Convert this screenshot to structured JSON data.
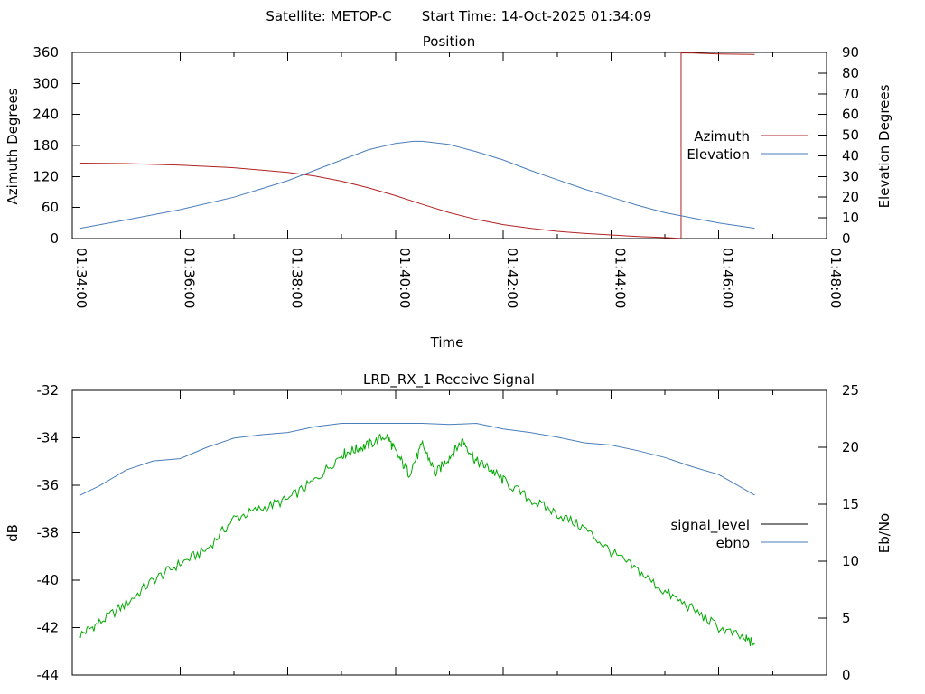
{
  "header": {
    "satellite": "Satellite: METOP-C",
    "start_time": "Start Time: 14-Oct-2025 01:34:09"
  },
  "chart_data": [
    {
      "type": "line",
      "title": "Position",
      "xlabel": "Time",
      "ylabel": "Azimuth Degrees",
      "y2label": "Elevation Degrees",
      "xlim": [
        "01:34:00",
        "01:48:00"
      ],
      "ylim": [
        0,
        360
      ],
      "y2lim": [
        0,
        90
      ],
      "x_ticks": [
        "01:34:00",
        "01:36:00",
        "01:38:00",
        "01:40:00",
        "01:42:00",
        "01:44:00",
        "01:46:00",
        "01:48:00"
      ],
      "y_ticks": [
        "0",
        "60",
        "120",
        "180",
        "240",
        "300",
        "360"
      ],
      "y2_ticks": [
        "0",
        "10",
        "20",
        "30",
        "40",
        "50",
        "60",
        "70",
        "80",
        "90"
      ],
      "legend_position": "right",
      "series": [
        {
          "name": "Azimuth",
          "axis": "y",
          "color": "#b22222",
          "x": [
            "01:34:09",
            "01:35:00",
            "01:36:00",
            "01:37:00",
            "01:38:00",
            "01:38:30",
            "01:39:00",
            "01:39:30",
            "01:40:00",
            "01:40:30",
            "01:41:00",
            "01:41:30",
            "01:42:00",
            "01:42:30",
            "01:43:00",
            "01:43:30",
            "01:44:00",
            "01:44:30",
            "01:45:00",
            "01:45:15",
            "01:45:18",
            "01:45:30",
            "01:46:00",
            "01:46:40"
          ],
          "values": [
            146,
            145,
            142,
            137,
            128,
            121,
            111,
            98,
            83,
            66,
            50,
            37,
            27,
            20,
            14,
            10,
            7,
            4,
            2,
            0.5,
            359,
            359,
            357,
            356
          ]
        },
        {
          "name": "Elevation",
          "axis": "y2",
          "color": "#4a7ebb",
          "x": [
            "01:34:09",
            "01:35:00",
            "01:36:00",
            "01:37:00",
            "01:37:30",
            "01:38:00",
            "01:38:30",
            "01:39:00",
            "01:39:30",
            "01:40:00",
            "01:40:20",
            "01:40:30",
            "01:41:00",
            "01:41:30",
            "01:42:00",
            "01:42:30",
            "01:43:00",
            "01:43:30",
            "01:44:00",
            "01:44:30",
            "01:45:00",
            "01:45:30",
            "01:46:00",
            "01:46:40"
          ],
          "values": [
            5,
            9,
            14,
            20,
            24,
            28,
            33,
            38,
            43,
            46,
            47,
            47,
            45.5,
            42,
            38,
            33,
            28.5,
            24,
            20,
            16,
            12.5,
            10,
            7.5,
            5
          ]
        }
      ]
    },
    {
      "type": "line",
      "title": "LRD_RX_1 Receive Signal",
      "xlabel": "",
      "ylabel": "dB",
      "y2label": "Eb/No",
      "xlim": [
        "01:34:00",
        "01:48:00"
      ],
      "ylim": [
        -44,
        -32
      ],
      "y2lim": [
        0,
        25
      ],
      "y_ticks": [
        "-44",
        "-42",
        "-40",
        "-38",
        "-36",
        "-34",
        "-32"
      ],
      "y2_ticks": [
        "0",
        "5",
        "10",
        "15",
        "20",
        "25"
      ],
      "legend_position": "right",
      "series": [
        {
          "name": "signal_level",
          "axis": "y",
          "color": "#00aa00",
          "x": [
            "01:34:09",
            "01:34:30",
            "01:35:00",
            "01:35:30",
            "01:36:00",
            "01:36:30",
            "01:37:00",
            "01:37:30",
            "01:38:00",
            "01:38:30",
            "01:39:00",
            "01:39:15",
            "01:39:30",
            "01:39:50",
            "01:40:00",
            "01:40:15",
            "01:40:30",
            "01:40:45",
            "01:41:00",
            "01:41:15",
            "01:41:30",
            "01:41:45",
            "01:42:00",
            "01:42:30",
            "01:43:00",
            "01:43:30",
            "01:44:00",
            "01:44:30",
            "01:45:00",
            "01:45:30",
            "01:46:00",
            "01:46:30",
            "01:46:40"
          ],
          "values": [
            -42.3,
            -41.8,
            -41.0,
            -40.0,
            -39.3,
            -38.7,
            -37.4,
            -37.0,
            -36.6,
            -35.8,
            -34.7,
            -34.5,
            -34.3,
            -33.9,
            -34.6,
            -35.5,
            -34.3,
            -35.5,
            -34.8,
            -34.1,
            -35.0,
            -35.3,
            -35.8,
            -36.6,
            -37.2,
            -37.8,
            -38.8,
            -39.6,
            -40.5,
            -41.2,
            -42.0,
            -42.5,
            -42.7
          ]
        },
        {
          "name": "ebno",
          "axis": "y2",
          "color": "#4a7ebb",
          "x": [
            "01:34:09",
            "01:34:30",
            "01:35:00",
            "01:35:30",
            "01:36:00",
            "01:36:30",
            "01:37:00",
            "01:37:30",
            "01:38:00",
            "01:38:30",
            "01:39:00",
            "01:39:30",
            "01:40:00",
            "01:40:30",
            "01:41:00",
            "01:41:30",
            "01:42:00",
            "01:42:30",
            "01:43:00",
            "01:43:30",
            "01:44:00",
            "01:44:30",
            "01:45:00",
            "01:45:30",
            "01:46:00",
            "01:46:40"
          ],
          "values": [
            15.8,
            16.6,
            18.0,
            18.8,
            19.0,
            20.0,
            20.8,
            21.1,
            21.3,
            21.8,
            22.1,
            22.1,
            22.1,
            22.1,
            22.0,
            22.1,
            21.6,
            21.3,
            20.9,
            20.4,
            20.2,
            19.7,
            19.1,
            18.3,
            17.6,
            15.8
          ]
        }
      ]
    }
  ]
}
